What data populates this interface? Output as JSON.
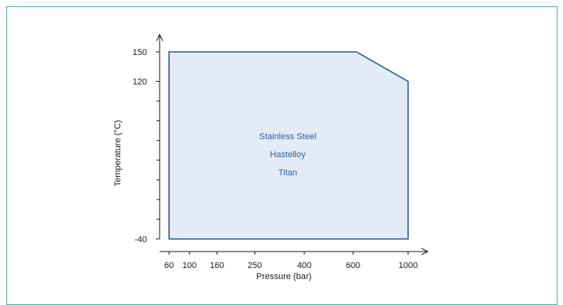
{
  "chart_data": {
    "type": "area",
    "xlabel": "Pressure (bar)",
    "ylabel": "Temperature (°C)",
    "x_ticks": [
      60,
      100,
      160,
      250,
      400,
      600,
      1000
    ],
    "y_ticks": [
      -40,
      120,
      150
    ],
    "envelope": [
      {
        "pressure": 60,
        "temperature": -40
      },
      {
        "pressure": 60,
        "temperature": 150
      },
      {
        "pressure": 625,
        "temperature": 150
      },
      {
        "pressure": 1000,
        "temperature": 120
      },
      {
        "pressure": 1000,
        "temperature": -40
      }
    ],
    "materials": [
      "Stainless Steel",
      "Hastelloy",
      "Titan"
    ],
    "grid": false
  },
  "colors": {
    "frame_border": "#4db3a3",
    "region_fill": "#e3ebf6",
    "region_stroke": "#2f5d9b",
    "annotation_text": "#2f5d9b"
  }
}
